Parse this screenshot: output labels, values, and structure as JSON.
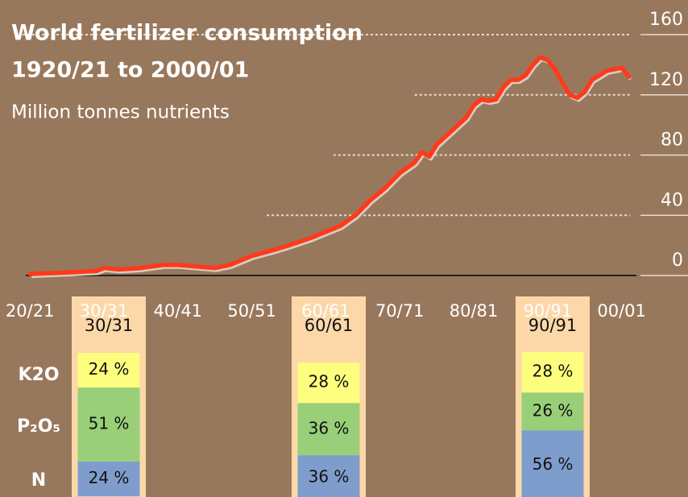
{
  "chart_data": [
    {
      "type": "line",
      "title": "World fertilizer consumption",
      "subtitle": "1920/21 to 2000/01",
      "y_label": "Million tonnes nutrients",
      "x": [
        1920,
        1925,
        1929,
        1930,
        1932,
        1935,
        1938,
        1940,
        1945,
        1947,
        1950,
        1953,
        1955,
        1958,
        1960,
        1962,
        1964,
        1966,
        1968,
        1970,
        1972,
        1973,
        1974,
        1975,
        1977,
        1979,
        1980,
        1981,
        1982,
        1983,
        1984,
        1985,
        1986,
        1987,
        1988,
        1989,
        1990,
        1991,
        1992,
        1993,
        1994,
        1995,
        1996,
        1997,
        1998,
        1999,
        2000,
        2001
      ],
      "values": [
        1,
        2,
        3,
        5,
        4,
        5,
        7,
        7,
        5,
        7,
        13,
        17,
        20,
        25,
        29,
        33,
        40,
        50,
        58,
        68,
        75,
        82,
        79,
        87,
        96,
        105,
        113,
        117,
        116,
        117,
        125,
        130,
        130,
        133,
        140,
        145,
        143,
        137,
        128,
        120,
        118,
        122,
        130,
        133,
        136,
        137,
        138,
        132
      ],
      "color": "#ff3a1c",
      "xlim": [
        1919,
        2002
      ],
      "xticks": [
        {
          "value": 1920,
          "label": "20/21"
        },
        {
          "value": 1930,
          "label": "30/31"
        },
        {
          "value": 1940,
          "label": "40/41"
        },
        {
          "value": 1950,
          "label": "50/51"
        },
        {
          "value": 1960,
          "label": "60/61"
        },
        {
          "value": 1970,
          "label": "70/71"
        },
        {
          "value": 1980,
          "label": "80/81"
        },
        {
          "value": 1990,
          "label": "90/91"
        },
        {
          "value": 2000,
          "label": "00/01"
        }
      ],
      "ylim": [
        0,
        160
      ],
      "yticks": [
        0,
        40,
        80,
        120,
        160
      ],
      "grid": true
    },
    {
      "type": "stacked_bar",
      "categories": [
        "30/31",
        "60/61",
        "90/91"
      ],
      "series": [
        {
          "name": "K2O",
          "color": "#fdfd7e",
          "values": [
            24,
            28,
            28
          ],
          "value_labels": [
            "24 %",
            "28 %",
            "28 %"
          ]
        },
        {
          "name": "P₂O₅",
          "color": "#98cf78",
          "values": [
            51,
            36,
            26
          ],
          "value_labels": [
            "51 %",
            "36 %",
            "26 %"
          ]
        },
        {
          "name": "N",
          "color": "#7f9dcc",
          "values": [
            24,
            36,
            56
          ],
          "value_labels": [
            "24 %",
            "36 %",
            "56 %"
          ]
        }
      ]
    }
  ]
}
